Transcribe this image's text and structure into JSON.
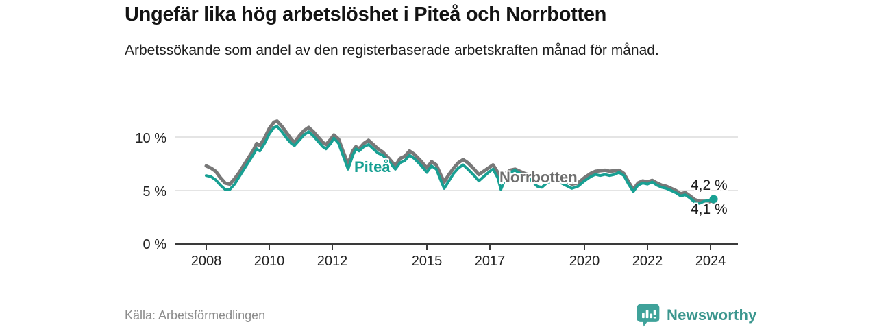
{
  "header": {
    "title": "Ungefär lika hög arbetslöshet i Piteå och Norrbotten",
    "subtitle": "Arbetssökande som andel av den registerbaserade arbetskraften månad för månad."
  },
  "footer": {
    "source": "Källa: Arbetsförmedlingen",
    "brand_name": "Newsworthy",
    "brand_icon": "bar-chart-speech-bubble-icon",
    "brand_color": "#3b968e"
  },
  "colors": {
    "pitea_line": "#18a093",
    "norrbotten_line": "#787878",
    "grid": "#dcdcdc",
    "axis": "#3a3a3a",
    "text": "#222222",
    "muted": "#8c8c8c"
  },
  "chart_data": {
    "type": "line",
    "unit": "%",
    "grid": true,
    "legend": "inline-labels",
    "x_range": [
      2008,
      2024.2
    ],
    "y_range": [
      0,
      12
    ],
    "y_ticks": [
      {
        "value": 10,
        "label": "10 %"
      },
      {
        "value": 5,
        "label": "5 %"
      },
      {
        "value": 0,
        "label": "0 %"
      }
    ],
    "x_ticks": [
      {
        "year": 2008,
        "label": "2008"
      },
      {
        "year": 2010,
        "label": "2010"
      },
      {
        "year": 2012,
        "label": "2012"
      },
      {
        "year": 2015,
        "label": "2015"
      },
      {
        "year": 2017,
        "label": "2017"
      },
      {
        "year": 2020,
        "label": "2020"
      },
      {
        "year": 2022,
        "label": "2022"
      },
      {
        "year": 2024,
        "label": "2024"
      }
    ],
    "x": [
      2008.0,
      2008.15,
      2008.3,
      2008.45,
      2008.6,
      2008.75,
      2008.9,
      2009.05,
      2009.2,
      2009.35,
      2009.5,
      2009.6,
      2009.7,
      2009.85,
      2010.0,
      2010.15,
      2010.25,
      2010.4,
      2010.55,
      2010.7,
      2010.8,
      2010.95,
      2011.1,
      2011.25,
      2011.4,
      2011.55,
      2011.7,
      2011.8,
      2011.95,
      2012.05,
      2012.2,
      2012.35,
      2012.5,
      2012.65,
      2012.75,
      2012.85,
      2013.0,
      2013.15,
      2013.3,
      2013.45,
      2013.6,
      2013.8,
      2014.0,
      2014.15,
      2014.3,
      2014.45,
      2014.6,
      2014.8,
      2015.0,
      2015.15,
      2015.3,
      2015.45,
      2015.55,
      2015.7,
      2015.85,
      2016.0,
      2016.15,
      2016.3,
      2016.5,
      2016.65,
      2016.8,
      2017.0,
      2017.1,
      2017.25,
      2017.35,
      2017.5,
      2017.65,
      2017.8,
      2017.95,
      2018.1,
      2018.3,
      2018.5,
      2018.65,
      2018.8,
      2019.0,
      2019.2,
      2019.4,
      2019.6,
      2019.8,
      2020.0,
      2020.2,
      2020.35,
      2020.5,
      2020.65,
      2020.8,
      2020.95,
      2021.1,
      2021.25,
      2021.4,
      2021.55,
      2021.7,
      2021.85,
      2022.0,
      2022.15,
      2022.3,
      2022.45,
      2022.6,
      2022.75,
      2022.9,
      2023.05,
      2023.2,
      2023.35,
      2023.5,
      2023.65,
      2023.8,
      2023.95,
      2024.1
    ],
    "series": [
      {
        "name": "Norrbotten",
        "color": "#787878",
        "end_label": "4,1 %",
        "values": [
          7.3,
          7.1,
          6.8,
          6.2,
          5.7,
          5.6,
          6.1,
          6.7,
          7.4,
          8.1,
          8.8,
          9.4,
          9.2,
          9.9,
          10.8,
          11.4,
          11.5,
          11.0,
          10.4,
          9.8,
          9.5,
          10.1,
          10.6,
          10.9,
          10.5,
          10.0,
          9.5,
          9.3,
          9.8,
          10.2,
          9.8,
          8.6,
          7.5,
          8.7,
          9.1,
          8.9,
          9.4,
          9.7,
          9.3,
          8.9,
          8.6,
          8.0,
          7.3,
          8.0,
          8.2,
          8.7,
          8.4,
          7.8,
          7.1,
          7.7,
          7.4,
          6.4,
          5.8,
          6.5,
          7.1,
          7.6,
          7.9,
          7.6,
          7.0,
          6.5,
          6.8,
          7.2,
          7.4,
          6.7,
          5.9,
          6.6,
          6.9,
          7.0,
          6.8,
          6.6,
          6.4,
          6.0,
          5.9,
          6.2,
          6.3,
          6.2,
          5.9,
          5.6,
          5.7,
          6.2,
          6.6,
          6.8,
          6.85,
          6.9,
          6.8,
          6.85,
          6.9,
          6.6,
          5.8,
          5.1,
          5.7,
          5.9,
          5.8,
          5.95,
          5.7,
          5.5,
          5.4,
          5.2,
          5.0,
          4.7,
          4.8,
          4.5,
          4.15,
          4.0,
          4.0,
          3.95,
          4.1
        ]
      },
      {
        "name": "Piteå",
        "color": "#18a093",
        "end_label": "4,2 %",
        "values": [
          6.4,
          6.3,
          6.0,
          5.5,
          5.1,
          5.1,
          5.6,
          6.3,
          7.0,
          7.7,
          8.4,
          8.9,
          8.7,
          9.4,
          10.3,
          10.9,
          11.0,
          10.5,
          9.9,
          9.4,
          9.2,
          9.7,
          10.2,
          10.5,
          10.1,
          9.6,
          9.1,
          8.9,
          9.4,
          9.9,
          9.4,
          8.2,
          7.0,
          8.3,
          8.9,
          8.7,
          9.1,
          9.3,
          8.9,
          8.5,
          8.3,
          7.7,
          7.0,
          7.6,
          7.8,
          8.3,
          8.0,
          7.4,
          6.7,
          7.3,
          7.0,
          5.9,
          5.2,
          5.9,
          6.6,
          7.1,
          7.4,
          7.0,
          6.4,
          5.9,
          6.3,
          6.8,
          7.0,
          6.2,
          5.1,
          6.2,
          6.7,
          6.9,
          6.6,
          6.3,
          6.0,
          5.4,
          5.3,
          5.7,
          5.9,
          5.8,
          5.5,
          5.2,
          5.4,
          5.9,
          6.3,
          6.5,
          6.4,
          6.5,
          6.4,
          6.5,
          6.7,
          6.4,
          5.6,
          4.9,
          5.5,
          5.7,
          5.6,
          5.8,
          5.5,
          5.3,
          5.2,
          5.0,
          4.8,
          4.5,
          4.6,
          4.3,
          3.9,
          3.8,
          4.0,
          4.1,
          4.2
        ]
      }
    ]
  }
}
